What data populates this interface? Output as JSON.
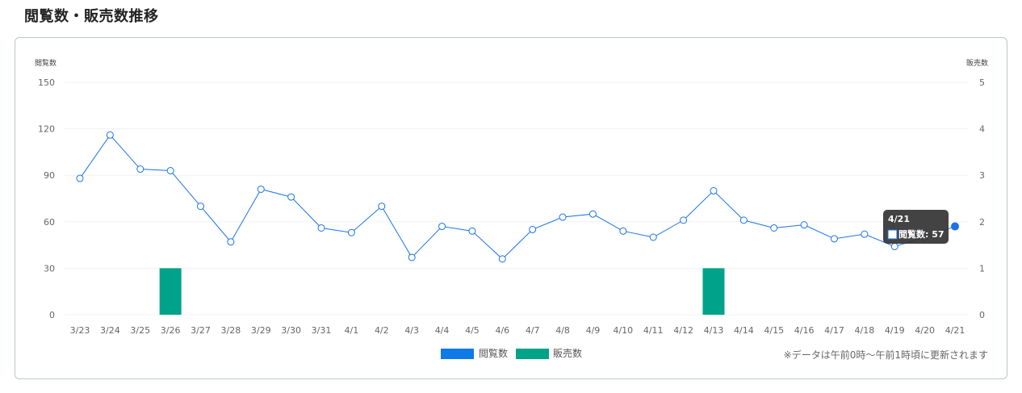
{
  "page": {
    "title": "閲覧数・販売数推移",
    "note": "※データは午前0時～午前1時頃に更新されます"
  },
  "chart_data": {
    "type": "bar+line",
    "categories": [
      "3/23",
      "3/24",
      "3/25",
      "3/26",
      "3/27",
      "3/28",
      "3/29",
      "3/30",
      "3/31",
      "4/1",
      "4/2",
      "4/3",
      "4/4",
      "4/5",
      "4/6",
      "4/7",
      "4/8",
      "4/9",
      "4/10",
      "4/11",
      "4/12",
      "4/13",
      "4/14",
      "4/15",
      "4/16",
      "4/17",
      "4/18",
      "4/19",
      "4/20",
      "4/21"
    ],
    "series": [
      {
        "name": "閲覧数",
        "kind": "line",
        "axis": "left",
        "color": "#1a73e8",
        "values": [
          88,
          116,
          94,
          93,
          70,
          47,
          81,
          76,
          56,
          53,
          70,
          37,
          57,
          54,
          36,
          55,
          63,
          65,
          54,
          50,
          61,
          80,
          61,
          56,
          58,
          49,
          52,
          44,
          50,
          57
        ]
      },
      {
        "name": "販売数",
        "kind": "bar",
        "axis": "right",
        "color": "#00a389",
        "values": [
          0,
          0,
          0,
          1,
          0,
          0,
          0,
          0,
          0,
          0,
          0,
          0,
          0,
          0,
          0,
          0,
          0,
          0,
          0,
          0,
          0,
          1,
          0,
          0,
          0,
          0,
          0,
          0,
          0,
          0
        ]
      }
    ],
    "ylabel_left": "閲覧数",
    "ylabel_right": "販売数",
    "ylim_left": [
      0,
      150
    ],
    "ylim_right": [
      0,
      5
    ],
    "yticks_left": [
      0,
      30,
      60,
      90,
      120,
      150
    ],
    "yticks_right": [
      0,
      1,
      2,
      3,
      4,
      5
    ],
    "grid": true,
    "legend_position": "bottom-center",
    "tooltip": {
      "category": "4/21",
      "series": "閲覧数",
      "value": 57,
      "label": "閲覧数: 57"
    }
  },
  "colors": {
    "line": "#1a73e8",
    "bar": "#00a389",
    "legend_line": "#0d7ae6",
    "grid": "#f0f0f0",
    "border": "#b9c7cc"
  }
}
